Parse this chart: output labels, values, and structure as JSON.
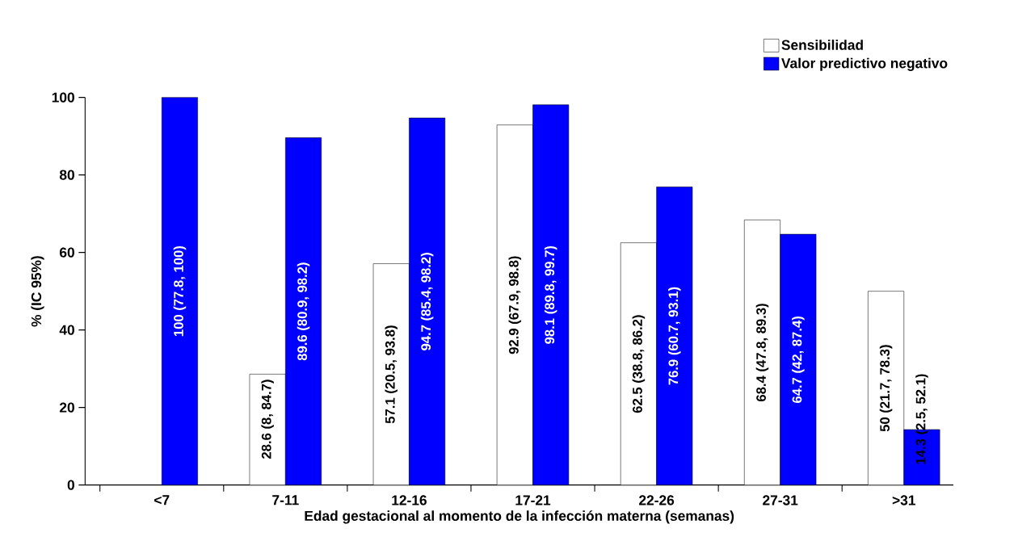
{
  "chart_data": {
    "type": "bar",
    "xlabel": "Edad gestacional al momento de la infección materna (semanas)",
    "ylabel": "% (IC 95%)",
    "categories": [
      "<7",
      "7-11",
      "12-16",
      "17-21",
      "22-26",
      "27-31",
      ">31"
    ],
    "series": [
      {
        "name": "Sensibilidad",
        "color": "#ffffff",
        "values": [
          null,
          28.6,
          57.1,
          92.9,
          62.5,
          68.4,
          50
        ],
        "value_labels": [
          null,
          "28.6 (8, 84.7)",
          "57.1 (20.5, 93.8)",
          "92.9 (67.9, 98.8)",
          "62.5 (38.8, 86.2)",
          "68.4 (47.8, 89.3)",
          "50 (21.7, 78.3)"
        ]
      },
      {
        "name": "Valor predictivo negativo",
        "color": "#0000ff",
        "values": [
          100,
          89.6,
          94.7,
          98.1,
          76.9,
          64.7,
          14.3
        ],
        "value_labels": [
          "100 (77.8, 100)",
          "89.6 (80.9, 98.2)",
          "94.7 (85.4, 98.2)",
          "98.1 (89.8, 99.7)",
          "76.9 (60.7, 93.1)",
          "64.7 (42, 87.4)",
          "14.3 (2.5, 52.1)"
        ]
      }
    ],
    "ylim": [
      0,
      100
    ],
    "yticks": [
      0,
      20,
      40,
      60,
      80,
      100
    ],
    "legend": "top right",
    "grid": false
  }
}
